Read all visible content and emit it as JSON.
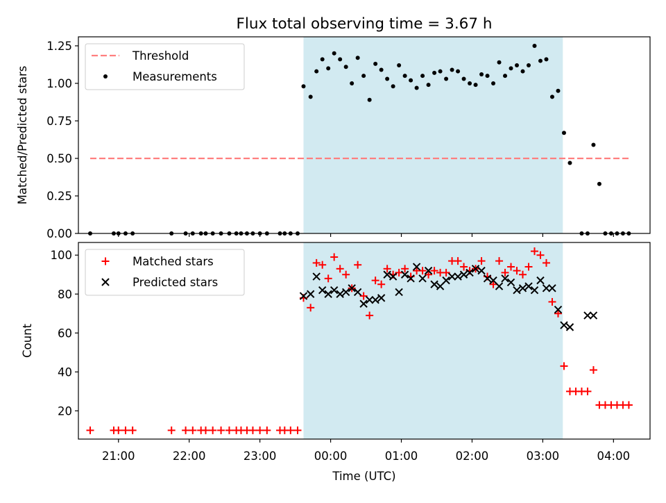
{
  "title": "Flux total observing time = 3.67 h",
  "colors": {
    "highlight": "#add8e6",
    "threshold": "#ff7f7f",
    "matched": "#ff0000",
    "measure": "#000000",
    "predicted": "#000000"
  },
  "chart_data": [
    {
      "type": "scatter",
      "ylabel": "Matched/Predicted stars",
      "ylim": [
        0,
        1.31
      ],
      "yticks": [
        "0.00",
        "0.25",
        "0.50",
        "0.75",
        "1.00",
        "1.25"
      ],
      "ytick_values": [
        0,
        0.25,
        0.5,
        0.75,
        1.0,
        1.25
      ],
      "xlim": [
        "20:26",
        "04:31"
      ],
      "highlight_span": [
        "23:37",
        "03:17"
      ],
      "legend": {
        "position": "top-left",
        "threshold": "Threshold",
        "measurements": "Measurements"
      },
      "threshold": {
        "value": 0.5,
        "x": [
          "20:36",
          "04:15"
        ]
      },
      "measurements": [
        {
          "x": "20:36",
          "y": 0
        },
        {
          "x": "20:56",
          "y": 0
        },
        {
          "x": "21:00",
          "y": 0
        },
        {
          "x": "21:06",
          "y": 0
        },
        {
          "x": "21:12",
          "y": 0
        },
        {
          "x": "21:45",
          "y": 0
        },
        {
          "x": "21:57",
          "y": 0
        },
        {
          "x": "22:03",
          "y": 0
        },
        {
          "x": "22:10",
          "y": 0
        },
        {
          "x": "22:14",
          "y": 0
        },
        {
          "x": "22:20",
          "y": 0
        },
        {
          "x": "22:27",
          "y": 0
        },
        {
          "x": "22:34",
          "y": 0
        },
        {
          "x": "22:40",
          "y": 0
        },
        {
          "x": "22:44",
          "y": 0
        },
        {
          "x": "22:49",
          "y": 0
        },
        {
          "x": "22:54",
          "y": 0
        },
        {
          "x": "23:00",
          "y": 0
        },
        {
          "x": "23:06",
          "y": 0
        },
        {
          "x": "23:17",
          "y": 0
        },
        {
          "x": "23:21",
          "y": 0
        },
        {
          "x": "23:26",
          "y": 0
        },
        {
          "x": "23:32",
          "y": 0
        },
        {
          "x": "23:37",
          "y": 0.98
        },
        {
          "x": "23:43",
          "y": 0.91
        },
        {
          "x": "23:48",
          "y": 1.08
        },
        {
          "x": "23:53",
          "y": 1.16
        },
        {
          "x": "23:58",
          "y": 1.1
        },
        {
          "x": "00:03",
          "y": 1.2
        },
        {
          "x": "00:08",
          "y": 1.16
        },
        {
          "x": "00:13",
          "y": 1.11
        },
        {
          "x": "00:18",
          "y": 1.0
        },
        {
          "x": "00:23",
          "y": 1.17
        },
        {
          "x": "00:28",
          "y": 1.05
        },
        {
          "x": "00:33",
          "y": 0.89
        },
        {
          "x": "00:38",
          "y": 1.13
        },
        {
          "x": "00:43",
          "y": 1.09
        },
        {
          "x": "00:48",
          "y": 1.03
        },
        {
          "x": "00:53",
          "y": 0.98
        },
        {
          "x": "00:58",
          "y": 1.12
        },
        {
          "x": "01:03",
          "y": 1.05
        },
        {
          "x": "01:08",
          "y": 1.02
        },
        {
          "x": "01:13",
          "y": 0.97
        },
        {
          "x": "01:18",
          "y": 1.05
        },
        {
          "x": "01:23",
          "y": 0.99
        },
        {
          "x": "01:28",
          "y": 1.07
        },
        {
          "x": "01:33",
          "y": 1.08
        },
        {
          "x": "01:38",
          "y": 1.03
        },
        {
          "x": "01:43",
          "y": 1.09
        },
        {
          "x": "01:48",
          "y": 1.08
        },
        {
          "x": "01:53",
          "y": 1.03
        },
        {
          "x": "01:58",
          "y": 1.0
        },
        {
          "x": "02:03",
          "y": 0.99
        },
        {
          "x": "02:08",
          "y": 1.06
        },
        {
          "x": "02:13",
          "y": 1.05
        },
        {
          "x": "02:18",
          "y": 1.0
        },
        {
          "x": "02:23",
          "y": 1.14
        },
        {
          "x": "02:28",
          "y": 1.05
        },
        {
          "x": "02:33",
          "y": 1.1
        },
        {
          "x": "02:38",
          "y": 1.12
        },
        {
          "x": "02:43",
          "y": 1.08
        },
        {
          "x": "02:48",
          "y": 1.12
        },
        {
          "x": "02:53",
          "y": 1.25
        },
        {
          "x": "02:58",
          "y": 1.15
        },
        {
          "x": "03:03",
          "y": 1.16
        },
        {
          "x": "03:08",
          "y": 0.91
        },
        {
          "x": "03:13",
          "y": 0.95
        },
        {
          "x": "03:18",
          "y": 0.67
        },
        {
          "x": "03:23",
          "y": 0.47
        },
        {
          "x": "03:33",
          "y": 0
        },
        {
          "x": "03:38",
          "y": 0
        },
        {
          "x": "03:43",
          "y": 0.59
        },
        {
          "x": "03:48",
          "y": 0.33
        },
        {
          "x": "03:53",
          "y": 0
        },
        {
          "x": "03:58",
          "y": 0
        },
        {
          "x": "04:03",
          "y": 0
        },
        {
          "x": "04:08",
          "y": 0
        },
        {
          "x": "04:13",
          "y": 0
        }
      ]
    },
    {
      "type": "scatter",
      "xlabel": "Time (UTC)",
      "ylabel": "Count",
      "ylim": [
        5.5,
        106.5
      ],
      "yticks": [
        "20",
        "40",
        "60",
        "80",
        "100"
      ],
      "ytick_values": [
        20,
        40,
        60,
        80,
        100
      ],
      "xticks": [
        "21:00",
        "22:00",
        "23:00",
        "00:00",
        "01:00",
        "02:00",
        "03:00",
        "04:00"
      ],
      "xlim": [
        "20:26",
        "04:31"
      ],
      "highlight_span": [
        "23:37",
        "03:17"
      ],
      "legend": {
        "position": "top-left",
        "matched": "Matched stars",
        "predicted": "Predicted stars"
      },
      "matched": [
        {
          "x": "20:36",
          "y": 10
        },
        {
          "x": "20:56",
          "y": 10
        },
        {
          "x": "21:00",
          "y": 10
        },
        {
          "x": "21:06",
          "y": 10
        },
        {
          "x": "21:12",
          "y": 10
        },
        {
          "x": "21:45",
          "y": 10
        },
        {
          "x": "21:57",
          "y": 10
        },
        {
          "x": "22:03",
          "y": 10
        },
        {
          "x": "22:10",
          "y": 10
        },
        {
          "x": "22:14",
          "y": 10
        },
        {
          "x": "22:20",
          "y": 10
        },
        {
          "x": "22:27",
          "y": 10
        },
        {
          "x": "22:34",
          "y": 10
        },
        {
          "x": "22:40",
          "y": 10
        },
        {
          "x": "22:44",
          "y": 10
        },
        {
          "x": "22:49",
          "y": 10
        },
        {
          "x": "22:54",
          "y": 10
        },
        {
          "x": "23:00",
          "y": 10
        },
        {
          "x": "23:06",
          "y": 10
        },
        {
          "x": "23:17",
          "y": 10
        },
        {
          "x": "23:21",
          "y": 10
        },
        {
          "x": "23:26",
          "y": 10
        },
        {
          "x": "23:32",
          "y": 10
        },
        {
          "x": "23:37",
          "y": 78
        },
        {
          "x": "23:43",
          "y": 73
        },
        {
          "x": "23:48",
          "y": 96
        },
        {
          "x": "23:53",
          "y": 95
        },
        {
          "x": "23:58",
          "y": 88
        },
        {
          "x": "00:03",
          "y": 99
        },
        {
          "x": "00:08",
          "y": 93
        },
        {
          "x": "00:13",
          "y": 90
        },
        {
          "x": "00:18",
          "y": 83
        },
        {
          "x": "00:23",
          "y": 95
        },
        {
          "x": "00:28",
          "y": 79
        },
        {
          "x": "00:33",
          "y": 69
        },
        {
          "x": "00:38",
          "y": 87
        },
        {
          "x": "00:43",
          "y": 85
        },
        {
          "x": "00:48",
          "y": 93
        },
        {
          "x": "00:53",
          "y": 90
        },
        {
          "x": "00:58",
          "y": 91
        },
        {
          "x": "01:03",
          "y": 93
        },
        {
          "x": "01:08",
          "y": 89
        },
        {
          "x": "01:13",
          "y": 92
        },
        {
          "x": "01:18",
          "y": 92
        },
        {
          "x": "01:23",
          "y": 90
        },
        {
          "x": "01:28",
          "y": 92
        },
        {
          "x": "01:33",
          "y": 91
        },
        {
          "x": "01:38",
          "y": 91
        },
        {
          "x": "01:43",
          "y": 97
        },
        {
          "x": "01:48",
          "y": 97
        },
        {
          "x": "01:53",
          "y": 94
        },
        {
          "x": "01:58",
          "y": 92
        },
        {
          "x": "02:03",
          "y": 93
        },
        {
          "x": "02:08",
          "y": 97
        },
        {
          "x": "02:13",
          "y": 89
        },
        {
          "x": "02:18",
          "y": 85
        },
        {
          "x": "02:23",
          "y": 97
        },
        {
          "x": "02:28",
          "y": 91
        },
        {
          "x": "02:33",
          "y": 94
        },
        {
          "x": "02:38",
          "y": 92
        },
        {
          "x": "02:43",
          "y": 90
        },
        {
          "x": "02:48",
          "y": 94
        },
        {
          "x": "02:53",
          "y": 102
        },
        {
          "x": "02:58",
          "y": 100
        },
        {
          "x": "03:03",
          "y": 96
        },
        {
          "x": "03:08",
          "y": 76
        },
        {
          "x": "03:13",
          "y": 70
        },
        {
          "x": "03:18",
          "y": 43
        },
        {
          "x": "03:23",
          "y": 30
        },
        {
          "x": "03:28",
          "y": 30
        },
        {
          "x": "03:33",
          "y": 30
        },
        {
          "x": "03:38",
          "y": 30
        },
        {
          "x": "03:43",
          "y": 41
        },
        {
          "x": "03:48",
          "y": 23
        },
        {
          "x": "03:53",
          "y": 23
        },
        {
          "x": "03:58",
          "y": 23
        },
        {
          "x": "04:03",
          "y": 23
        },
        {
          "x": "04:08",
          "y": 23
        },
        {
          "x": "04:13",
          "y": 23
        }
      ],
      "predicted": [
        {
          "x": "23:37",
          "y": 79
        },
        {
          "x": "23:43",
          "y": 80
        },
        {
          "x": "23:48",
          "y": 89
        },
        {
          "x": "23:53",
          "y": 82
        },
        {
          "x": "23:58",
          "y": 80
        },
        {
          "x": "00:03",
          "y": 82
        },
        {
          "x": "00:08",
          "y": 80
        },
        {
          "x": "00:13",
          "y": 81
        },
        {
          "x": "00:18",
          "y": 83
        },
        {
          "x": "00:23",
          "y": 81
        },
        {
          "x": "00:28",
          "y": 75
        },
        {
          "x": "00:33",
          "y": 77
        },
        {
          "x": "00:38",
          "y": 77
        },
        {
          "x": "00:43",
          "y": 78
        },
        {
          "x": "00:48",
          "y": 90
        },
        {
          "x": "00:53",
          "y": 89
        },
        {
          "x": "00:58",
          "y": 81
        },
        {
          "x": "01:03",
          "y": 90
        },
        {
          "x": "01:08",
          "y": 88
        },
        {
          "x": "01:13",
          "y": 94
        },
        {
          "x": "01:18",
          "y": 88
        },
        {
          "x": "01:23",
          "y": 92
        },
        {
          "x": "01:28",
          "y": 85
        },
        {
          "x": "01:33",
          "y": 84
        },
        {
          "x": "01:38",
          "y": 87
        },
        {
          "x": "01:43",
          "y": 89
        },
        {
          "x": "01:48",
          "y": 89
        },
        {
          "x": "01:53",
          "y": 90
        },
        {
          "x": "01:58",
          "y": 91
        },
        {
          "x": "02:03",
          "y": 93
        },
        {
          "x": "02:08",
          "y": 92
        },
        {
          "x": "02:13",
          "y": 88
        },
        {
          "x": "02:18",
          "y": 87
        },
        {
          "x": "02:23",
          "y": 84
        },
        {
          "x": "02:28",
          "y": 88
        },
        {
          "x": "02:33",
          "y": 86
        },
        {
          "x": "02:38",
          "y": 82
        },
        {
          "x": "02:43",
          "y": 83
        },
        {
          "x": "02:48",
          "y": 84
        },
        {
          "x": "02:53",
          "y": 82
        },
        {
          "x": "02:58",
          "y": 87
        },
        {
          "x": "03:03",
          "y": 83
        },
        {
          "x": "03:08",
          "y": 83
        },
        {
          "x": "03:13",
          "y": 72
        },
        {
          "x": "03:18",
          "y": 64
        },
        {
          "x": "03:23",
          "y": 63
        },
        {
          "x": "03:38",
          "y": 69
        },
        {
          "x": "03:43",
          "y": 69
        }
      ]
    }
  ]
}
